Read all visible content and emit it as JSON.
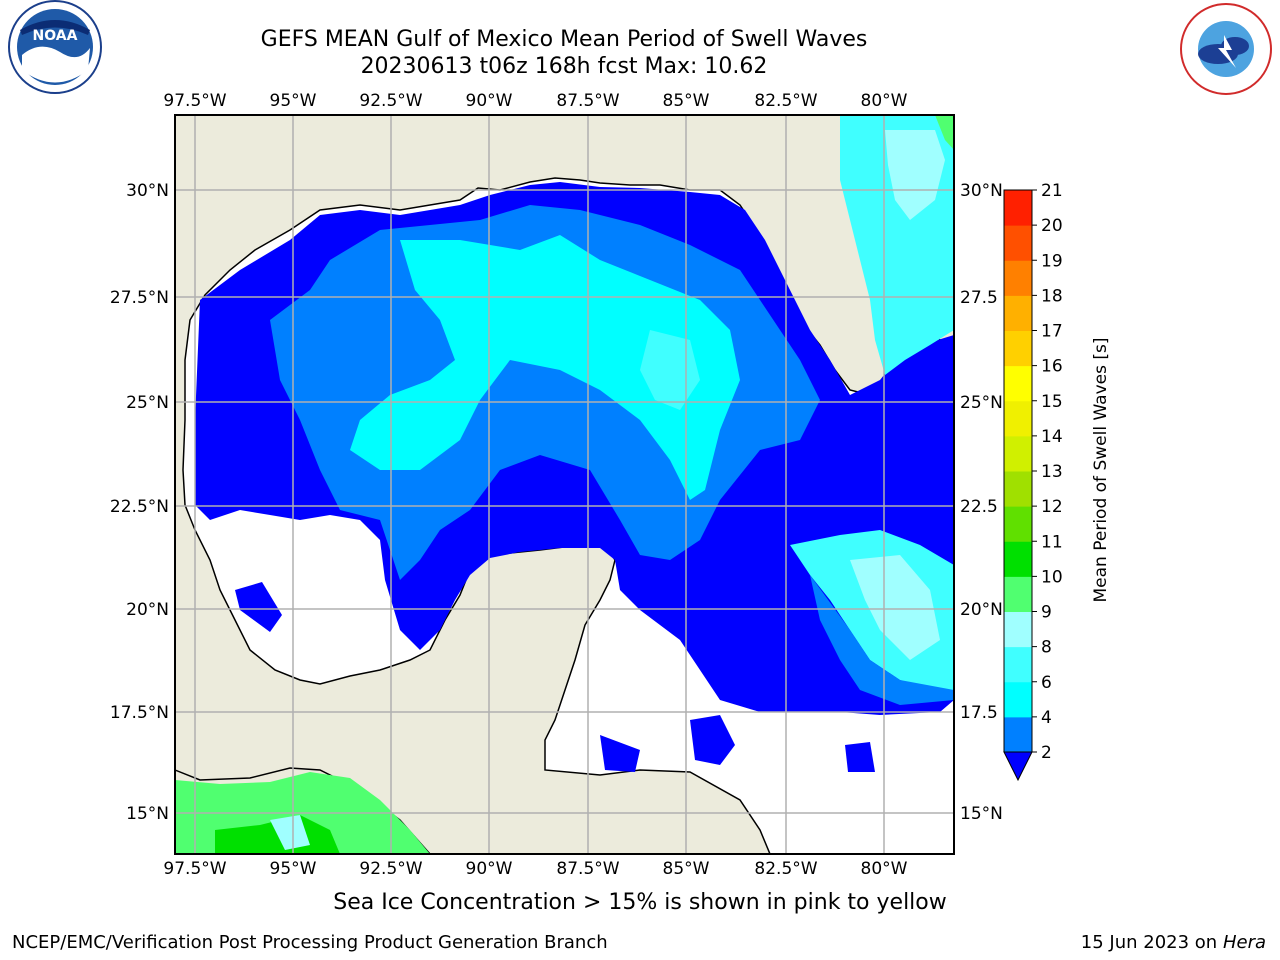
{
  "title_line1": "GEFS MEAN Gulf of Mexico Mean Period of Swell Waves",
  "title_line2": "20230613 t06z 168h fcst   Max: 10.62",
  "footer_note": "Sea Ice Concentration > 15% is shown in pink to yellow",
  "credit_left": "NCEP/EMC/Verification Post Processing Product Generation Branch",
  "credit_right_date": "15 Jun 2023 on",
  "credit_right_machine": "Hera",
  "logos": {
    "left": "NOAA",
    "right": "NATIONAL WEATHER SERVICE"
  },
  "map": {
    "lon_ticks": [
      "97.5°W",
      "95°W",
      "92.5°W",
      "90°W",
      "87.5°W",
      "85°W",
      "82.5°W",
      "80°W"
    ],
    "lat_ticks_left": [
      "30°N",
      "27.5°N",
      "25°N",
      "22.5°N",
      "20°N",
      "17.5°N",
      "15°N"
    ],
    "lat_ticks_right": [
      "30°N",
      "27.5",
      "25°N",
      "22.5",
      "20°N",
      "17.5",
      "15°N"
    ],
    "land_color": "#ecebdc",
    "grid_color": "#b0b0b0"
  },
  "colorbar": {
    "label": "Mean Period of Swell Waves [s]",
    "levels": [
      "2",
      "4",
      "6",
      "8",
      "9",
      "10",
      "11",
      "12",
      "13",
      "14",
      "15",
      "16",
      "17",
      "18",
      "19",
      "20",
      "21"
    ],
    "colors": [
      "#0000ff",
      "#0080ff",
      "#00ffff",
      "#40ffff",
      "#a0ffff",
      "#50ff70",
      "#00e000",
      "#60e000",
      "#a0e000",
      "#d0f000",
      "#f0f000",
      "#ffff00",
      "#ffd000",
      "#ffb000",
      "#ff8000",
      "#ff5000",
      "#ff2000",
      "#ff0000"
    ]
  }
}
